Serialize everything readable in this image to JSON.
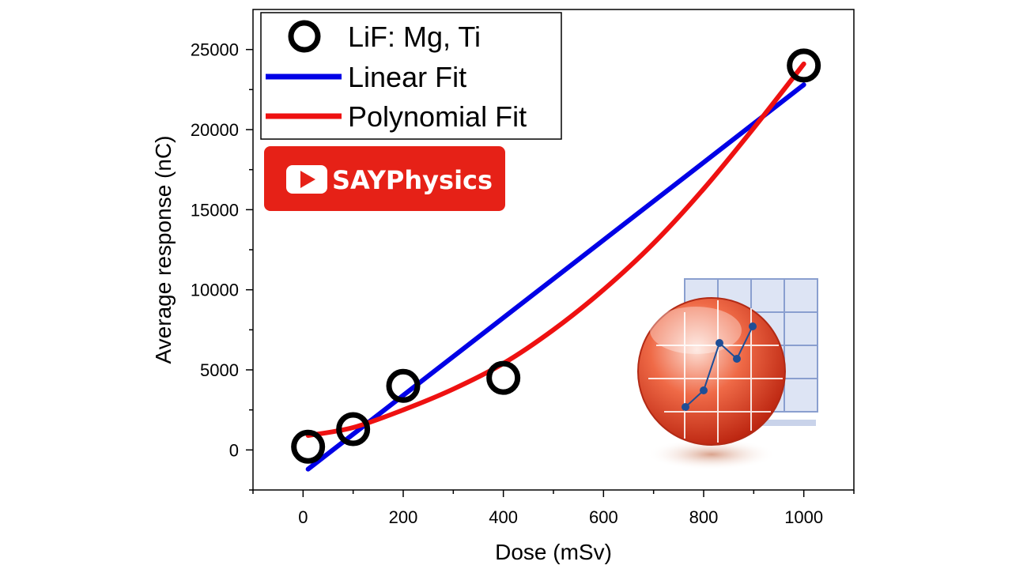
{
  "chart_data": {
    "type": "scatter",
    "xlabel": "Dose (mSv)",
    "ylabel": "Average response (nC)",
    "xlim": [
      -100,
      1100
    ],
    "ylim": [
      -2500,
      27500
    ],
    "x_ticks": [
      0,
      200,
      400,
      600,
      800,
      1000
    ],
    "y_ticks": [
      0,
      5000,
      10000,
      15000,
      20000,
      25000
    ],
    "grid": false,
    "legend_position": "top-left",
    "series": [
      {
        "name": "LiF: Mg, Ti",
        "kind": "scatter",
        "marker": "open-circle",
        "color": "#000000",
        "points": [
          [
            10,
            200
          ],
          [
            100,
            1300
          ],
          [
            200,
            4000
          ],
          [
            400,
            4500
          ],
          [
            1000,
            24000
          ]
        ]
      },
      {
        "name": "Linear Fit",
        "kind": "line",
        "color": "#0000e6",
        "points": [
          [
            10,
            -1200
          ],
          [
            1000,
            22800
          ]
        ]
      },
      {
        "name": "Polynomial Fit",
        "kind": "line",
        "color": "#ee1111",
        "points": [
          [
            10,
            900
          ],
          [
            100,
            1400
          ],
          [
            200,
            2500
          ],
          [
            300,
            3800
          ],
          [
            400,
            5400
          ],
          [
            500,
            7500
          ],
          [
            600,
            10000
          ],
          [
            700,
            12900
          ],
          [
            800,
            16300
          ],
          [
            900,
            20100
          ],
          [
            1000,
            24100
          ]
        ]
      }
    ]
  },
  "brand": {
    "label": "SAYPhysics",
    "color": "#e62117"
  },
  "logo_icon": "origin-graph-icon"
}
